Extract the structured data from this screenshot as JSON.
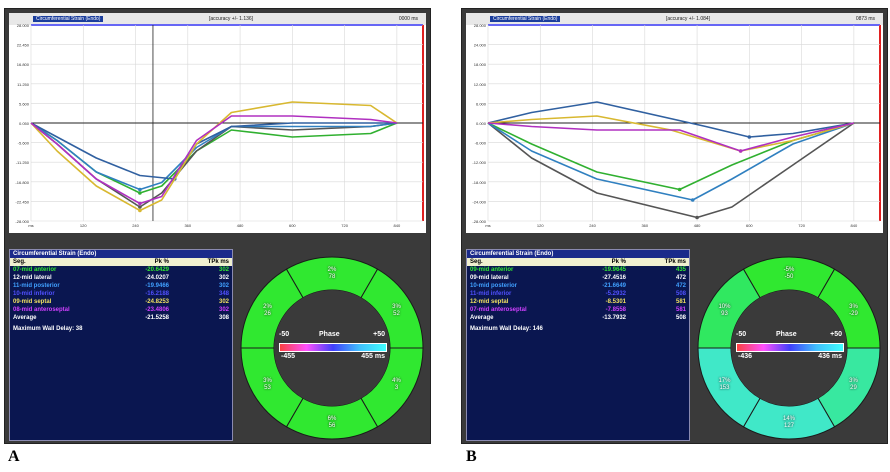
{
  "panels": [
    {
      "letter": "A",
      "plot": {
        "title": "Circumferential Strain (Endo)",
        "meta": "[accuracy +/- 1.136]",
        "time": "0000 ms",
        "y_ticks": [
          "28.000",
          "22.450",
          "16.800",
          "11.250",
          "5.600",
          "0.050",
          "-5.600",
          "-11.250",
          "-16.800",
          "-22.450",
          "-28.000"
        ],
        "x_ticks": [
          "ms",
          "120",
          "240",
          "360",
          "480",
          "600",
          "720",
          "840"
        ]
      },
      "table": {
        "title": "Circumferential Strain (Endo)",
        "headers": [
          "Seg.",
          "Pk %",
          "TPk ms"
        ],
        "rows": [
          {
            "seg": "07-mid anterior",
            "pk": "-20.6429",
            "t": "302",
            "color": "#30e830"
          },
          {
            "seg": "12-mid lateral",
            "pk": "-24.0207",
            "t": "302",
            "color": "#ffffff"
          },
          {
            "seg": "11-mid posterior",
            "pk": "-19.9466",
            "t": "302",
            "color": "#40a0ff"
          },
          {
            "seg": "10-mid inferior",
            "pk": "-16.2188",
            "t": "348",
            "color": "#5050ff"
          },
          {
            "seg": "09-mid septal",
            "pk": "-24.8253",
            "t": "302",
            "color": "#f0e060"
          },
          {
            "seg": "08-mid anteroseptal",
            "pk": "-23.4806",
            "t": "302",
            "color": "#d040ff"
          },
          {
            "seg": "Average",
            "pk": "-21.5258",
            "t": "308",
            "color": "#ffffff"
          }
        ],
        "delay": "Maximum Wall Delay: 38"
      },
      "bullseye": {
        "phase_title": "Phase",
        "phase_min": "-50",
        "phase_max": "+50",
        "range_min": "-455",
        "range_max": "455 ms",
        "segments": [
          {
            "pct": "2%",
            "ms": "78"
          },
          {
            "pct": "3%",
            "ms": "52"
          },
          {
            "pct": "4%",
            "ms": "3"
          },
          {
            "pct": "6%",
            "ms": "56"
          },
          {
            "pct": "3%",
            "ms": "53"
          },
          {
            "pct": "2%",
            "ms": "26"
          }
        ],
        "colors": [
          "#30e830",
          "#30e830",
          "#30e830",
          "#30e830",
          "#30e830",
          "#30e830"
        ]
      }
    },
    {
      "letter": "B",
      "plot": {
        "title": "Circumferential Strain (Endo)",
        "meta": "[accuracy +/- 1.084]",
        "time": "0873 ms",
        "y_ticks": [
          "28.000",
          "24.000",
          "18.000",
          "12.000",
          "6.000",
          "0.000",
          "-6.000",
          "-12.000",
          "-18.000",
          "-24.000",
          "-28.000"
        ],
        "x_ticks": [
          "ms",
          "120",
          "240",
          "360",
          "480",
          "600",
          "720",
          "840"
        ]
      },
      "table": {
        "title": "Circumferential Strain (Endo)",
        "headers": [
          "Seg.",
          "Pk %",
          "TPk ms"
        ],
        "rows": [
          {
            "seg": "09-mid anterior",
            "pk": "-19.9645",
            "t": "435",
            "color": "#30e830"
          },
          {
            "seg": "09-mid lateral",
            "pk": "-27.4516",
            "t": "472",
            "color": "#ffffff"
          },
          {
            "seg": "10-mid posterior",
            "pk": "-21.6649",
            "t": "472",
            "color": "#40a0ff"
          },
          {
            "seg": "11-mid inferior",
            "pk": "-5.2932",
            "t": "508",
            "color": "#5050ff"
          },
          {
            "seg": "12-mid septal",
            "pk": "-8.5301",
            "t": "581",
            "color": "#f0e060"
          },
          {
            "seg": "07-mid anteroseptal",
            "pk": "-7.8558",
            "t": "581",
            "color": "#d040ff"
          },
          {
            "seg": "Average",
            "pk": "-13.7932",
            "t": "508",
            "color": "#ffffff"
          }
        ],
        "delay": "Maximum Wall Delay: 146"
      },
      "bullseye": {
        "phase_title": "Phase",
        "phase_min": "-50",
        "phase_max": "+50",
        "range_min": "-436",
        "range_max": "436 ms",
        "segments": [
          {
            "pct": "-5%",
            "ms": "-50"
          },
          {
            "pct": "3%",
            "ms": "-29"
          },
          {
            "pct": "3%",
            "ms": "29"
          },
          {
            "pct": "14%",
            "ms": "127"
          },
          {
            "pct": "17%",
            "ms": "153"
          },
          {
            "pct": "10%",
            "ms": "93"
          }
        ],
        "colors": [
          "#30e830",
          "#30e830",
          "#38e8a0",
          "#40e8c8",
          "#40e8c8",
          "#30e860"
        ]
      }
    }
  ],
  "chart_data": [
    {
      "type": "line",
      "xlabel": "ms",
      "ylim": [
        -28,
        28
      ],
      "xlim": [
        0,
        900
      ],
      "series": [
        {
          "name": "07-mid anterior",
          "color": "#30b030",
          "x": [
            0,
            60,
            150,
            250,
            300,
            380,
            460,
            600,
            780,
            840
          ],
          "y": [
            0,
            -5,
            -14,
            -20,
            -18,
            -8,
            -2,
            -4,
            -3,
            0
          ]
        },
        {
          "name": "12-mid lateral",
          "color": "#555555",
          "x": [
            0,
            60,
            150,
            250,
            300,
            380,
            460,
            600,
            780,
            840
          ],
          "y": [
            0,
            -6,
            -16,
            -24,
            -20,
            -8,
            -1,
            -2,
            -1,
            0
          ]
        },
        {
          "name": "11-mid posterior",
          "color": "#3080c0",
          "x": [
            0,
            60,
            150,
            250,
            300,
            380,
            460,
            600,
            780,
            840
          ],
          "y": [
            0,
            -5,
            -14,
            -19,
            -17,
            -7,
            -1,
            -1,
            -1,
            0
          ]
        },
        {
          "name": "10-mid inferior",
          "color": "#3060a0",
          "x": [
            0,
            60,
            150,
            250,
            330,
            380,
            460,
            600,
            780,
            840
          ],
          "y": [
            0,
            -4,
            -10,
            -15,
            -16,
            -6,
            -1,
            0,
            0,
            0
          ]
        },
        {
          "name": "09-mid septal",
          "color": "#d8b830",
          "x": [
            0,
            60,
            150,
            250,
            300,
            380,
            460,
            600,
            780,
            840
          ],
          "y": [
            0,
            -8,
            -18,
            -25,
            -22,
            -6,
            3,
            6,
            5,
            0
          ]
        },
        {
          "name": "08-mid anteroseptal",
          "color": "#b030c0",
          "x": [
            0,
            60,
            150,
            250,
            300,
            380,
            460,
            600,
            780,
            840
          ],
          "y": [
            0,
            -6,
            -16,
            -23,
            -21,
            -5,
            2,
            2,
            1,
            0
          ]
        }
      ]
    },
    {
      "type": "line",
      "xlabel": "ms",
      "ylim": [
        -28,
        28
      ],
      "xlim": [
        0,
        900
      ],
      "series": [
        {
          "name": "09-mid anterior",
          "color": "#30b030",
          "x": [
            0,
            100,
            250,
            440,
            560,
            700,
            840
          ],
          "y": [
            0,
            -6,
            -14,
            -19,
            -12,
            -5,
            0
          ]
        },
        {
          "name": "09-mid lateral",
          "color": "#555555",
          "x": [
            0,
            100,
            250,
            480,
            560,
            700,
            840
          ],
          "y": [
            0,
            -10,
            -20,
            -27,
            -24,
            -12,
            0
          ]
        },
        {
          "name": "10-mid posterior",
          "color": "#3080c0",
          "x": [
            0,
            100,
            250,
            470,
            560,
            700,
            840
          ],
          "y": [
            0,
            -8,
            -16,
            -22,
            -16,
            -6,
            0
          ]
        },
        {
          "name": "11-mid inferior",
          "color": "#3060a0",
          "x": [
            0,
            100,
            250,
            500,
            600,
            700,
            840
          ],
          "y": [
            0,
            3,
            6,
            -1,
            -4,
            -3,
            0
          ]
        },
        {
          "name": "12-mid septal",
          "color": "#d8b830",
          "x": [
            0,
            100,
            250,
            420,
            580,
            700,
            840
          ],
          "y": [
            0,
            1,
            2,
            -2,
            -8,
            -5,
            0
          ]
        },
        {
          "name": "07-mid anteroseptal",
          "color": "#b030c0",
          "x": [
            0,
            100,
            250,
            440,
            580,
            700,
            840
          ],
          "y": [
            0,
            -1,
            -2,
            -2,
            -8,
            -4,
            0
          ]
        }
      ]
    }
  ]
}
